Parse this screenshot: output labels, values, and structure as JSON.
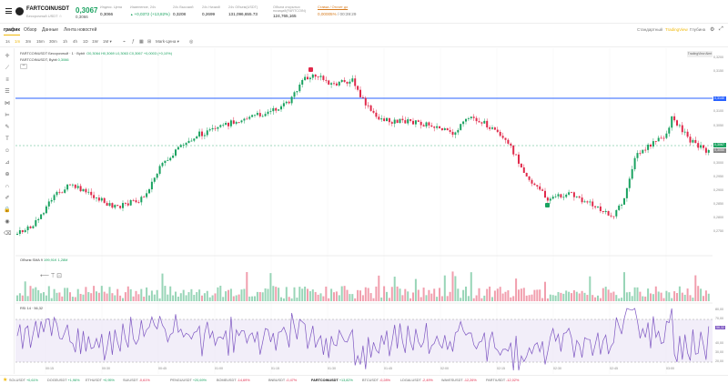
{
  "header": {
    "symbol": "FARTCOINUSDT",
    "subtitle": "Бессрочный USDT ☆",
    "price": "0,3067",
    "price_sub": "0,3066",
    "stats": [
      {
        "label": "Индекс. Цена",
        "value": "0,3066",
        "up": false
      },
      {
        "label": "Изменение, 24ч",
        "value": "+0,0372 (+13,82%)",
        "up": true
      },
      {
        "label": "24ч Высокий",
        "value": "0,3208",
        "up": false
      },
      {
        "label": "24ч Низкий",
        "value": "0,2699",
        "up": false
      },
      {
        "label": "24ч Объем(USDT)",
        "value": "131,096,655.73",
        "up": false
      },
      {
        "label": "Объем открытых позиций(FARTCOIN)",
        "value": "124,765,165",
        "up": false
      }
    ],
    "funding": {
      "label": "Ставка / Отсчет до",
      "rate": "0,00005%",
      "countdown": "/ 00:39:29"
    }
  },
  "tabs": {
    "items": [
      "график",
      "Обзор",
      "Данные",
      "Лента новостей"
    ],
    "active": "график",
    "views": [
      "Стандартный",
      "TradingView",
      "Глубина"
    ],
    "active_view": "TradingView"
  },
  "toolbar": {
    "timeframes": [
      "1s",
      "1m",
      "3m",
      "15m",
      "30m",
      "1h",
      "4h",
      "1D",
      "1W",
      "1M ▾"
    ],
    "active_timeframe": "1m",
    "indicators_label": "Mark-Цена ▾"
  },
  "chart": {
    "legend_title": "FARTCOINUSDT Бессрочный · 1 · Bybit",
    "legend_ohlc": "O0,3064 H0,3069 L0,3063 C0,3067 +0,0003 (+0,10%)",
    "legend_sub": "FARTCOINUSDT, Bybit",
    "legend_sub_val": "0,3066",
    "volume_label": "Объем SMA 9",
    "volume_vals": "199,91K  1,28M",
    "rsi_label": "RSI 14 · 56,32",
    "badge": "TradingView Alert",
    "price_ticks": [
      "0,3200",
      "0,3150",
      "0,3100",
      "0,3050",
      "0,3000",
      "0,2950",
      "0,2900",
      "0,2850",
      "0,2800",
      "0,2750"
    ],
    "hline_label": "0,3140",
    "current_label": "0,3067",
    "secondary_label": "0,3050",
    "rsi_ticks": [
      "80,00",
      "70,00",
      "56,32",
      "40,00",
      "30,00",
      "20,00"
    ],
    "time_ticks": [
      "00:15",
      "00:30",
      "00:45",
      "01:00",
      "01:15",
      "01:30",
      "01:45",
      "02:00",
      "02:15",
      "02:30",
      "02:45",
      "03:00"
    ]
  },
  "ticker": {
    "items": [
      {
        "name": "SOLUSDT",
        "change": "+0,61%",
        "up": true
      },
      {
        "name": "DOGEUSDT",
        "change": "+1,96%",
        "up": true
      },
      {
        "name": "ETHUSDT",
        "change": "+0,95%",
        "up": true
      },
      {
        "name": "SUIUSDT",
        "change": "-0,61%",
        "up": false
      },
      {
        "name": "PENGUUSDT",
        "change": "+20,69%",
        "up": true
      },
      {
        "name": "BOMEUSDT",
        "change": "-14,69%",
        "up": false
      },
      {
        "name": "BNBUSDT",
        "change": "-0,47%",
        "up": false
      },
      {
        "name": "FARTCOINUSDT",
        "change": "+13,82%",
        "up": true
      },
      {
        "name": "BTCUSDT",
        "change": "-0,28%",
        "up": false
      },
      {
        "name": "LDGALUSDT",
        "change": "-2,49%",
        "up": false
      },
      {
        "name": "WAVESUSDT",
        "change": "-12,26%",
        "up": false
      },
      {
        "name": "PARTIUSDT",
        "change": "-12,02%",
        "up": false
      }
    ],
    "current": "FARTCOINUSDT"
  },
  "colors": {
    "up": "#1aa260",
    "down": "#e0294a",
    "accent": "#f0b90b",
    "hline": "#2962ff",
    "rsi": "#7e57c2"
  }
}
